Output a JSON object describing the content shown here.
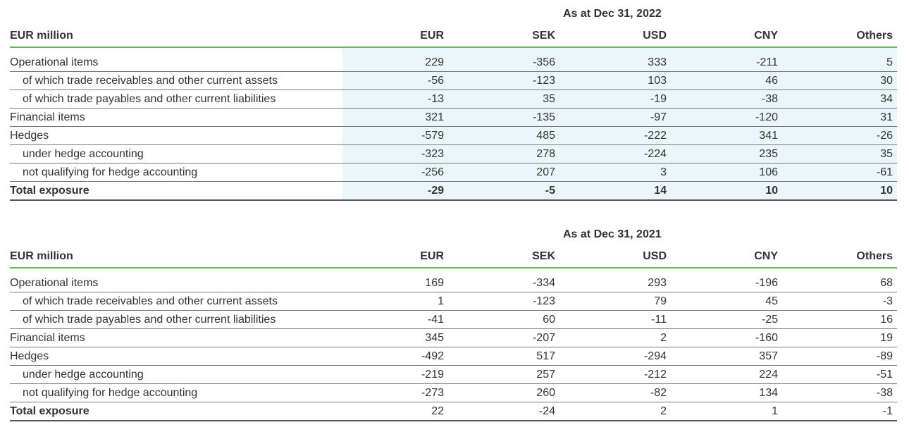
{
  "tables": [
    {
      "period": "As at Dec 31, 2022",
      "header": [
        "EUR million",
        "EUR",
        "SEK",
        "USD",
        "CNY",
        "Others"
      ],
      "rows": [
        {
          "label": "Operational items",
          "values": [
            "229",
            "-356",
            "333",
            "-211",
            "5"
          ]
        },
        {
          "label": "of which trade receivables and other current assets",
          "values": [
            "-56",
            "-123",
            "103",
            "46",
            "30"
          ]
        },
        {
          "label": "of which trade payables and other current liabilities",
          "values": [
            "-13",
            "35",
            "-19",
            "-38",
            "34"
          ]
        },
        {
          "label": "Financial items",
          "values": [
            "321",
            "-135",
            "-97",
            "-120",
            "31"
          ]
        },
        {
          "label": "Hedges",
          "values": [
            "-579",
            "485",
            "-222",
            "341",
            "-26"
          ]
        },
        {
          "label": "under hedge accounting",
          "values": [
            "-323",
            "278",
            "-224",
            "235",
            "35"
          ]
        },
        {
          "label": "not qualifying for hedge accounting",
          "values": [
            "-256",
            "207",
            "3",
            "106",
            "-61"
          ]
        },
        {
          "label": "Total exposure",
          "values": [
            "-29",
            "-5",
            "14",
            "10",
            "10"
          ]
        }
      ]
    },
    {
      "period": "As at Dec 31, 2021",
      "header": [
        "EUR million",
        "EUR",
        "SEK",
        "USD",
        "CNY",
        "Others"
      ],
      "rows": [
        {
          "label": "Operational items",
          "values": [
            "169",
            "-334",
            "293",
            "-196",
            "68"
          ]
        },
        {
          "label": "of which trade receivables and other current assets",
          "values": [
            "1",
            "-123",
            "79",
            "45",
            "-3"
          ]
        },
        {
          "label": "of which trade payables and other current liabilities",
          "values": [
            "-41",
            "60",
            "-11",
            "-25",
            "16"
          ]
        },
        {
          "label": "Financial items",
          "values": [
            "345",
            "-207",
            "2",
            "-160",
            "19"
          ]
        },
        {
          "label": "Hedges",
          "values": [
            "-492",
            "517",
            "-294",
            "357",
            "-89"
          ]
        },
        {
          "label": "under hedge accounting",
          "values": [
            "-219",
            "257",
            "-212",
            "224",
            "-51"
          ]
        },
        {
          "label": "not qualifying for hedge accounting",
          "values": [
            "-273",
            "260",
            "-82",
            "134",
            "-38"
          ]
        },
        {
          "label": "Total exposure",
          "values": [
            "22",
            "-24",
            "2",
            "1",
            "-1"
          ]
        }
      ]
    }
  ],
  "colors": {
    "header_rule": "#5bbf4a",
    "highlight": "#eaf6f8",
    "text": "#333333"
  }
}
